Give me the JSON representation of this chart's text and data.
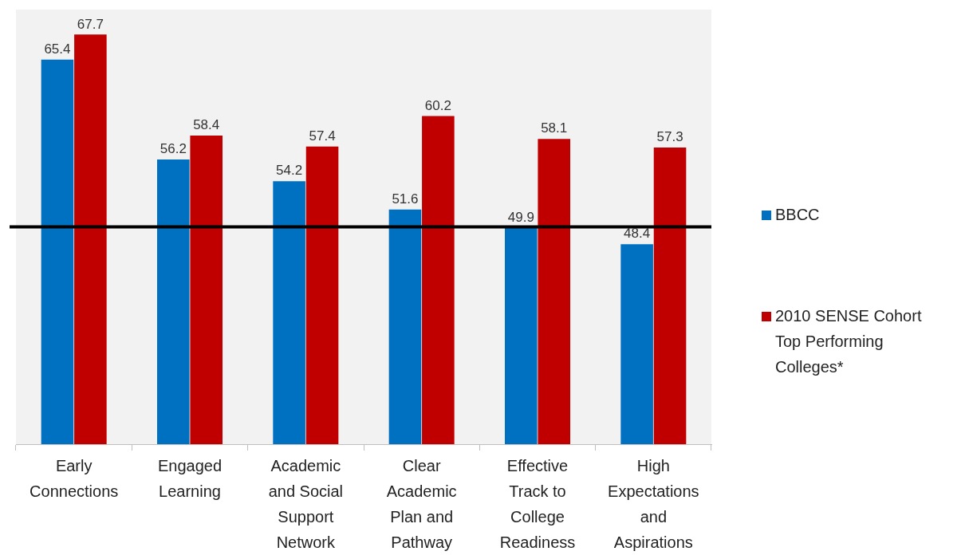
{
  "chart_data": {
    "type": "bar",
    "categories": [
      "Early Connections",
      "Engaged Learning",
      "Academic and Social Support Network",
      "Clear Academic Plan and Pathway",
      "Effective Track to College Readiness",
      "High Expectations and Aspirations"
    ],
    "series": [
      {
        "name": "BBCC",
        "color": "#0070c0",
        "values": [
          65.4,
          56.2,
          54.2,
          51.6,
          49.9,
          48.4
        ]
      },
      {
        "name": "2010 SENSE Cohort Top Performing Colleges*",
        "color": "#c00000",
        "values": [
          67.7,
          58.4,
          57.4,
          60.2,
          58.1,
          57.3
        ]
      }
    ],
    "ylim": [
      30,
      70
    ],
    "tick_labels": "x",
    "data_labels": true,
    "legend": "right",
    "ref_lines": [
      {
        "axis": "y",
        "value": 50,
        "color": "#000000"
      }
    ]
  }
}
